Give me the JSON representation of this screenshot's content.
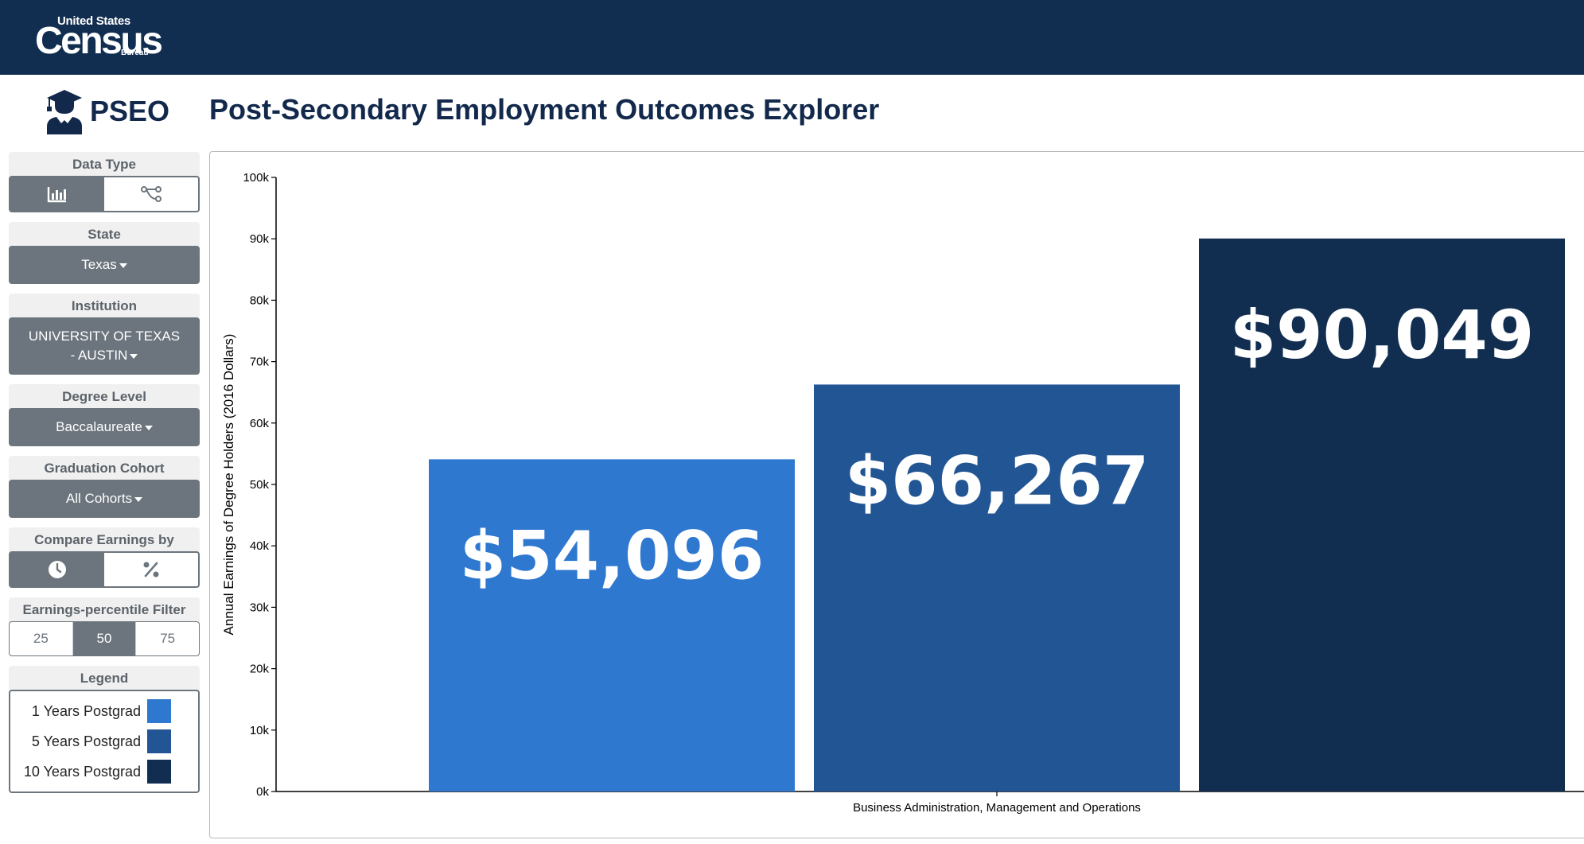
{
  "header": {
    "logo_line1": "United States",
    "logo_line2": "Census",
    "logo_line3": "Bureau",
    "brand_color": "#112e51"
  },
  "brand": {
    "name": "PSEO",
    "icon": "graduate-icon"
  },
  "page_title": "Post-Secondary Employment Outcomes Explorer",
  "sidebar": {
    "data_type": {
      "label": "Data Type",
      "options": [
        "bar-chart-icon",
        "flow-icon"
      ],
      "selected": 0
    },
    "state": {
      "label": "State",
      "value": "Texas"
    },
    "institution": {
      "label": "Institution",
      "value_line1": "UNIVERSITY OF TEXAS",
      "value_line2": "- AUSTIN"
    },
    "degree_level": {
      "label": "Degree Level",
      "value": "Baccalaureate"
    },
    "graduation_cohort": {
      "label": "Graduation Cohort",
      "value": "All Cohorts"
    },
    "compare_earnings": {
      "label": "Compare Earnings by",
      "options": [
        "clock-icon",
        "percent-icon"
      ],
      "selected": 0
    },
    "percentile_filter": {
      "label": "Earnings-percentile Filter",
      "options": [
        "25",
        "50",
        "75"
      ],
      "selected": "50"
    },
    "legend": {
      "label": "Legend",
      "items": [
        {
          "label": "1 Years Postgrad",
          "color": "#2f78d0"
        },
        {
          "label": "5 Years Postgrad",
          "color": "#225594"
        },
        {
          "label": "10 Years Postgrad",
          "color": "#112e51"
        }
      ]
    }
  },
  "chart_data": {
    "type": "bar",
    "categories": [
      "Business Administration, Management and Operations"
    ],
    "ylabel": "Annual Earnings of Degree Holders (2016 Dollars)",
    "xlabel": "",
    "ylim": [
      0,
      100000
    ],
    "yticks": [
      0,
      10000,
      20000,
      30000,
      40000,
      50000,
      60000,
      70000,
      80000,
      90000,
      100000
    ],
    "ytick_labels": [
      "0k",
      "10k",
      "20k",
      "30k",
      "40k",
      "50k",
      "60k",
      "70k",
      "80k",
      "90k",
      "100k"
    ],
    "series": [
      {
        "name": "1 Years Postgrad",
        "values": [
          54096
        ],
        "label": "$54,096",
        "color": "#2f78d0"
      },
      {
        "name": "5 Years Postgrad",
        "values": [
          66267
        ],
        "label": "$66,267",
        "color": "#225594"
      },
      {
        "name": "10 Years Postgrad",
        "values": [
          90049
        ],
        "label": "$90,049",
        "color": "#112e51"
      }
    ]
  }
}
